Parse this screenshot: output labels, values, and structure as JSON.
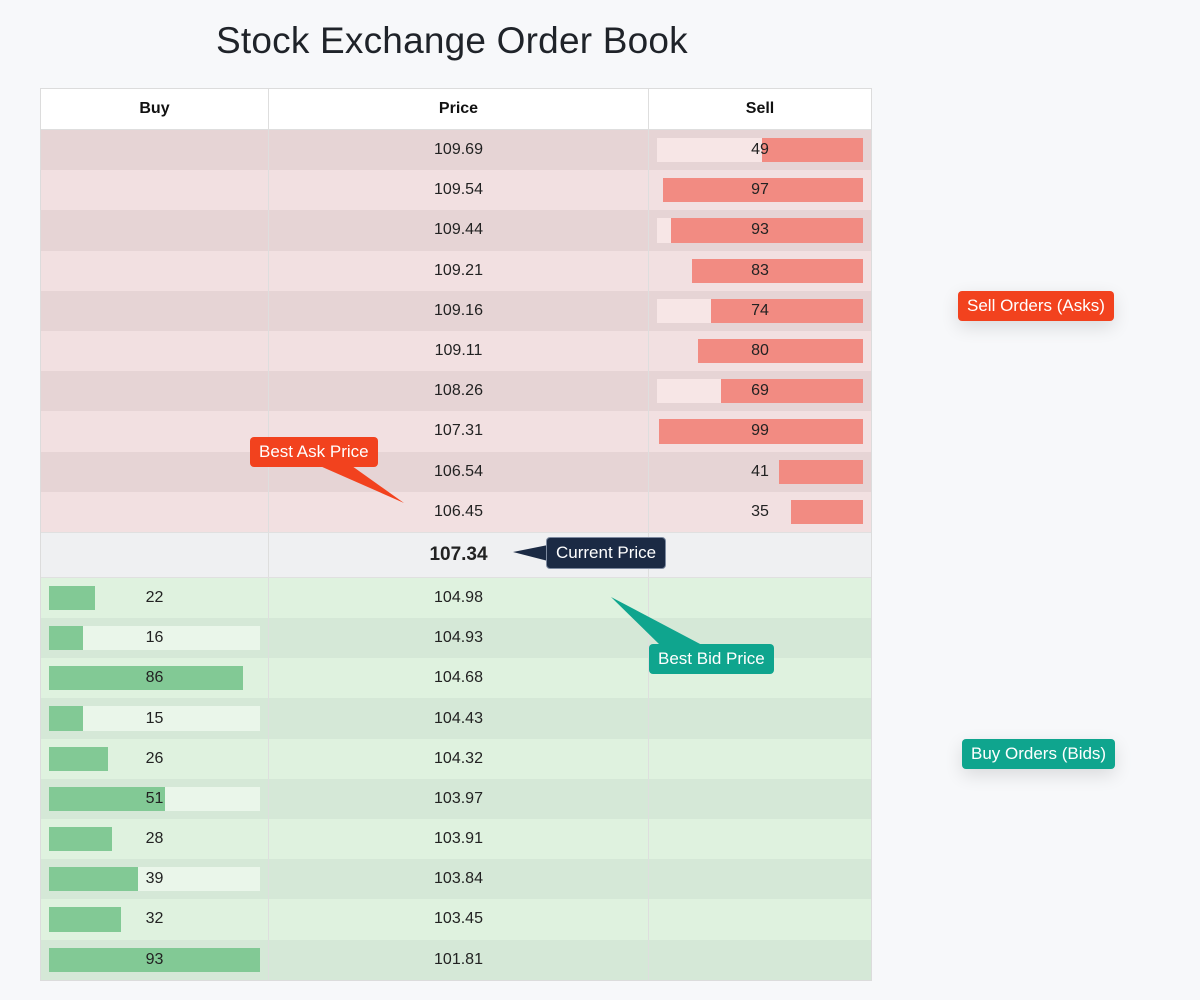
{
  "title": "Stock Exchange Order Book",
  "columns": {
    "buy": "Buy",
    "price": "Price",
    "sell": "Sell"
  },
  "asks": [
    {
      "price": "109.69",
      "qty": "49",
      "depth": 0.49
    },
    {
      "price": "109.54",
      "qty": "97",
      "depth": 0.97
    },
    {
      "price": "109.44",
      "qty": "93",
      "depth": 0.93
    },
    {
      "price": "109.21",
      "qty": "83",
      "depth": 0.83
    },
    {
      "price": "109.16",
      "qty": "74",
      "depth": 0.74
    },
    {
      "price": "109.11",
      "qty": "80",
      "depth": 0.8
    },
    {
      "price": "108.26",
      "qty": "69",
      "depth": 0.69
    },
    {
      "price": "107.31",
      "qty": "99",
      "depth": 0.99
    },
    {
      "price": "106.54",
      "qty": "41",
      "depth": 0.41
    },
    {
      "price": "106.45",
      "qty": "35",
      "depth": 0.35
    }
  ],
  "current_price": "107.34",
  "bids": [
    {
      "price": "104.98",
      "qty": "22",
      "depth": 0.22
    },
    {
      "price": "104.93",
      "qty": "16",
      "depth": 0.16
    },
    {
      "price": "104.68",
      "qty": "86",
      "depth": 0.92
    },
    {
      "price": "104.43",
      "qty": "15",
      "depth": 0.16
    },
    {
      "price": "104.32",
      "qty": "26",
      "depth": 0.28
    },
    {
      "price": "103.97",
      "qty": "51",
      "depth": 0.55
    },
    {
      "price": "103.91",
      "qty": "28",
      "depth": 0.3
    },
    {
      "price": "103.84",
      "qty": "39",
      "depth": 0.42
    },
    {
      "price": "103.45",
      "qty": "32",
      "depth": 0.34
    },
    {
      "price": "101.81",
      "qty": "93",
      "depth": 1.0
    }
  ],
  "annotations": {
    "best_ask": "Best Ask Price",
    "current": "Current Price",
    "best_bid": "Best Bid Price",
    "sell_orders": "Sell Orders (Asks)",
    "buy_orders": "Buy Orders (Bids)"
  },
  "colors": {
    "ask_bar": "#f28b82",
    "bid_bar": "#82c995",
    "ask_tag": "#f2421e",
    "bid_tag": "#0fa58e",
    "current_tag": "#1b2a44"
  }
}
